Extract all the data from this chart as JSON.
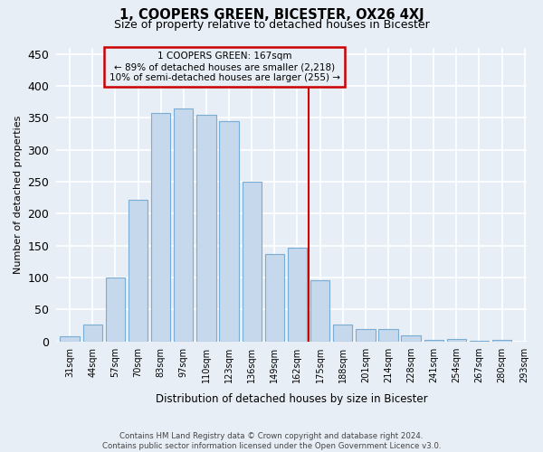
{
  "title": "1, COOPERS GREEN, BICESTER, OX26 4XJ",
  "subtitle": "Size of property relative to detached houses in Bicester",
  "xlabel": "Distribution of detached houses by size in Bicester",
  "ylabel": "Number of detached properties",
  "bar_labels": [
    "31sqm",
    "44sqm",
    "57sqm",
    "70sqm",
    "83sqm",
    "97sqm",
    "110sqm",
    "123sqm",
    "136sqm",
    "149sqm",
    "162sqm",
    "175sqm",
    "188sqm",
    "201sqm",
    "214sqm",
    "228sqm",
    "241sqm",
    "254sqm",
    "267sqm",
    "280sqm",
    "293sqm"
  ],
  "bar_values": [
    8,
    26,
    100,
    222,
    357,
    365,
    355,
    345,
    250,
    137,
    147,
    96,
    27,
    20,
    20,
    10,
    3,
    4,
    1,
    2
  ],
  "bar_color": "#c5d8ec",
  "bar_edge_color": "#7aadd4",
  "annotation_line1": "1 COOPERS GREEN: 167sqm",
  "annotation_line2": "← 89% of detached houses are smaller (2,218)",
  "annotation_line3": "10% of semi-detached houses are larger (255) →",
  "annotation_box_color": "#cc0000",
  "prop_line_color": "#cc0000",
  "ylim": [
    0,
    460
  ],
  "yticks": [
    0,
    50,
    100,
    150,
    200,
    250,
    300,
    350,
    400,
    450
  ],
  "background_color": "#e8eef5",
  "grid_color": "#ffffff",
  "footer_line1": "Contains HM Land Registry data © Crown copyright and database right 2024.",
  "footer_line2": "Contains public sector information licensed under the Open Government Licence v3.0."
}
